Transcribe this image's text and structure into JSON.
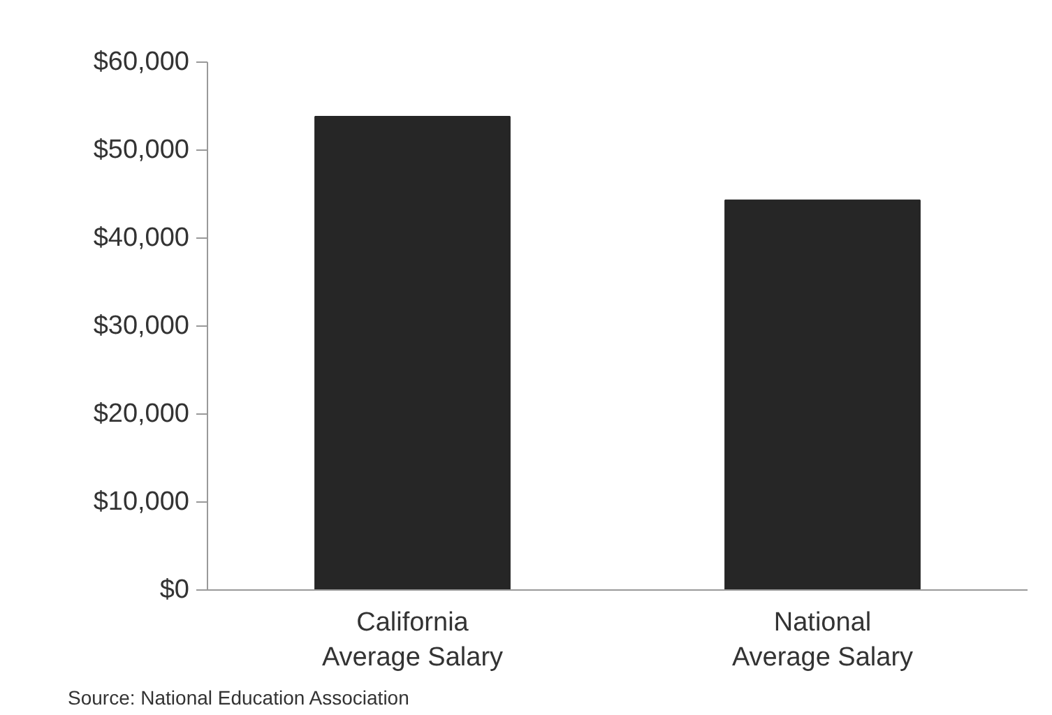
{
  "chart_data": {
    "type": "bar",
    "categories": [
      "California\nAverage Salary",
      "National\nAverage Salary"
    ],
    "values": [
      53800,
      44300
    ],
    "color": "#262626",
    "ylim": [
      0,
      60000
    ],
    "yticks": [
      {
        "value": 0,
        "label": "$0"
      },
      {
        "value": 10000,
        "label": "$10,000"
      },
      {
        "value": 20000,
        "label": "$20,000"
      },
      {
        "value": 30000,
        "label": "$30,000"
      },
      {
        "value": 40000,
        "label": "$40,000"
      },
      {
        "value": 50000,
        "label": "$50,000"
      },
      {
        "value": 60000,
        "label": "$60,000"
      }
    ],
    "grid": false,
    "annotations": [
      "Source:  National Education Association"
    ]
  }
}
